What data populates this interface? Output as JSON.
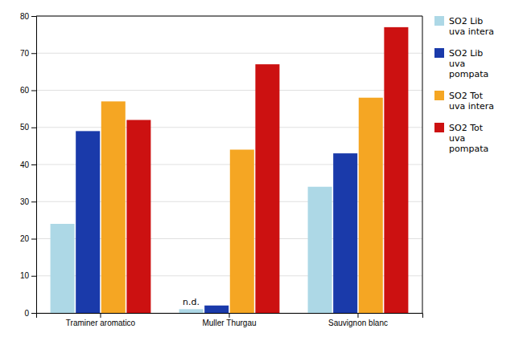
{
  "chart_data": {
    "type": "bar",
    "categories": [
      "Traminer aromatico",
      "Muller Thurgau",
      "Sauvignon blanc"
    ],
    "series": [
      {
        "name": "SO2 Lib\nuva intera",
        "color": "#add8e6",
        "values": [
          24,
          1,
          34
        ]
      },
      {
        "name": "SO2 Lib\nuva\npompata",
        "color": "#1a3aaa",
        "values": [
          49,
          2,
          43
        ]
      },
      {
        "name": "SO2 Tot\nuva intera",
        "color": "#f5a623",
        "values": [
          57,
          44,
          58
        ]
      },
      {
        "name": "SO2 Tot\nuva\npompata",
        "color": "#cc1111",
        "values": [
          52,
          67,
          77
        ]
      }
    ],
    "annotations": [
      {
        "text": "n.d.",
        "category": "Muller Thurgau",
        "series": "SO2 Lib\nuva intera"
      }
    ],
    "ylim": [
      0,
      80
    ],
    "yticks": [
      0,
      10,
      20,
      30,
      40,
      50,
      60,
      70,
      80
    ],
    "grid": true,
    "legend": "right"
  }
}
